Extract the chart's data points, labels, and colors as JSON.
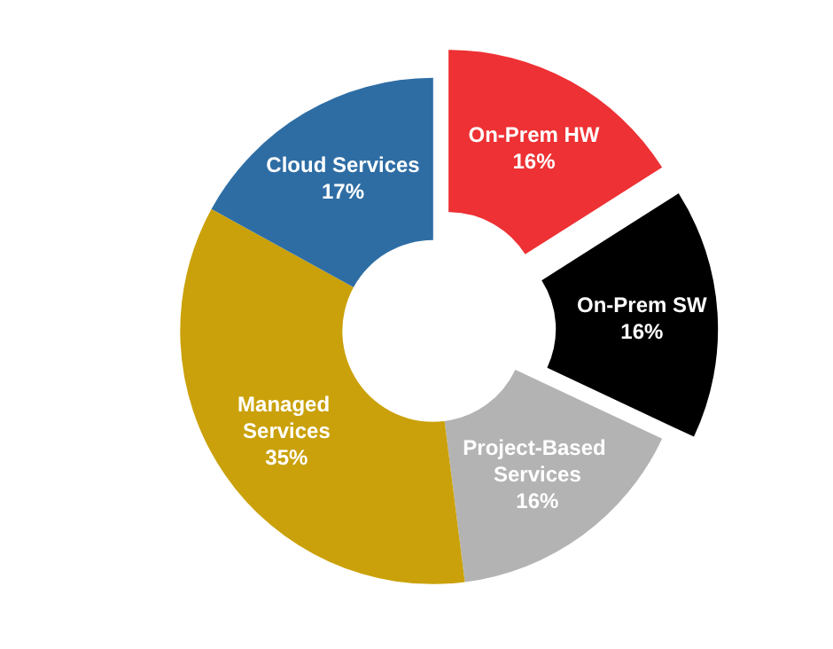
{
  "chart_data": {
    "type": "donut",
    "categories": [
      "On-Prem HW",
      "On-Prem SW",
      "Project-Based Services",
      "Managed Services",
      "Cloud Services"
    ],
    "values": [
      16,
      16,
      16,
      35,
      17
    ],
    "value_labels": [
      "16%",
      "16%",
      "16%",
      "35%",
      "17%"
    ],
    "colors": [
      "#ee3134",
      "#000000",
      "#b3b3b3",
      "#caa10a",
      "#2e6da4"
    ],
    "legend": false
  }
}
